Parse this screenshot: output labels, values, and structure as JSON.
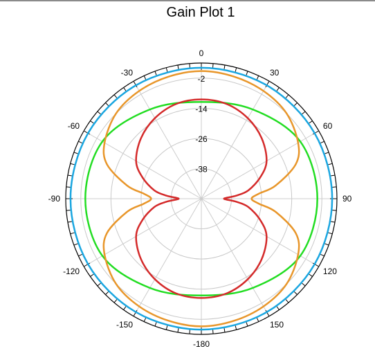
{
  "chart_data": {
    "type": "polar",
    "title": "Gain Plot 1",
    "angle_ticks": [
      0,
      30,
      60,
      90,
      120,
      150,
      -180,
      -150,
      -120,
      -90,
      -60,
      -30
    ],
    "radial_ticks": [
      -2,
      -14,
      -26,
      -38
    ],
    "r_range": [
      -50,
      4
    ],
    "grid": true,
    "series": [
      {
        "color": "#1aa6e0",
        "theta": [
          0,
          30,
          60,
          90,
          120,
          150,
          180,
          210,
          240,
          270,
          300,
          330
        ],
        "r": [
          2.1,
          2.1,
          2.1,
          2.1,
          2.1,
          2.1,
          2.1,
          2.1,
          2.1,
          2.1,
          2.1,
          2.1
        ]
      },
      {
        "color": "#22dd22",
        "theta": [
          0,
          30,
          60,
          90,
          120,
          150,
          180,
          210,
          240,
          270,
          300,
          330
        ],
        "r": [
          -11.5,
          -9,
          -4.5,
          -3.8,
          -4.5,
          -9,
          -11.5,
          -9,
          -4.5,
          -3.8,
          -4.5,
          -9
        ]
      },
      {
        "color": "#e8962a",
        "theta": [
          0,
          15,
          30,
          45,
          60,
          70,
          80,
          85,
          90,
          95,
          100,
          110,
          120,
          135,
          150,
          165,
          180,
          195,
          210,
          225,
          240,
          250,
          260,
          265,
          270,
          275,
          280,
          290,
          300,
          315,
          330,
          345
        ],
        "r": [
          0.8,
          0.3,
          -0.5,
          -2,
          -5.5,
          -10,
          -20,
          -27,
          -30,
          -27,
          -20,
          -10,
          -5.5,
          -2,
          -0.5,
          0.3,
          0.8,
          0.3,
          -0.5,
          -2,
          -5.5,
          -10,
          -20,
          -27,
          -30,
          -27,
          -20,
          -10,
          -5.5,
          -2,
          -0.5,
          0.3
        ]
      },
      {
        "color": "#d42a2a",
        "theta": [
          0,
          15,
          30,
          45,
          60,
          70,
          80,
          85,
          88,
          90,
          92,
          95,
          100,
          110,
          120,
          135,
          150,
          165,
          180,
          195,
          210,
          225,
          240,
          250,
          260,
          265,
          268,
          270,
          272,
          275,
          280,
          290,
          300,
          315,
          330,
          345
        ],
        "r": [
          -10.5,
          -11,
          -13,
          -16,
          -20,
          -25,
          -31,
          -36,
          -40,
          -41,
          -40,
          -36,
          -31,
          -25,
          -20,
          -16,
          -13,
          -11,
          -10.5,
          -11,
          -13,
          -16,
          -20,
          -25,
          -31,
          -36,
          -40,
          -41,
          -40,
          -36,
          -31,
          -25,
          -20,
          -16,
          -13,
          -11
        ]
      }
    ]
  }
}
